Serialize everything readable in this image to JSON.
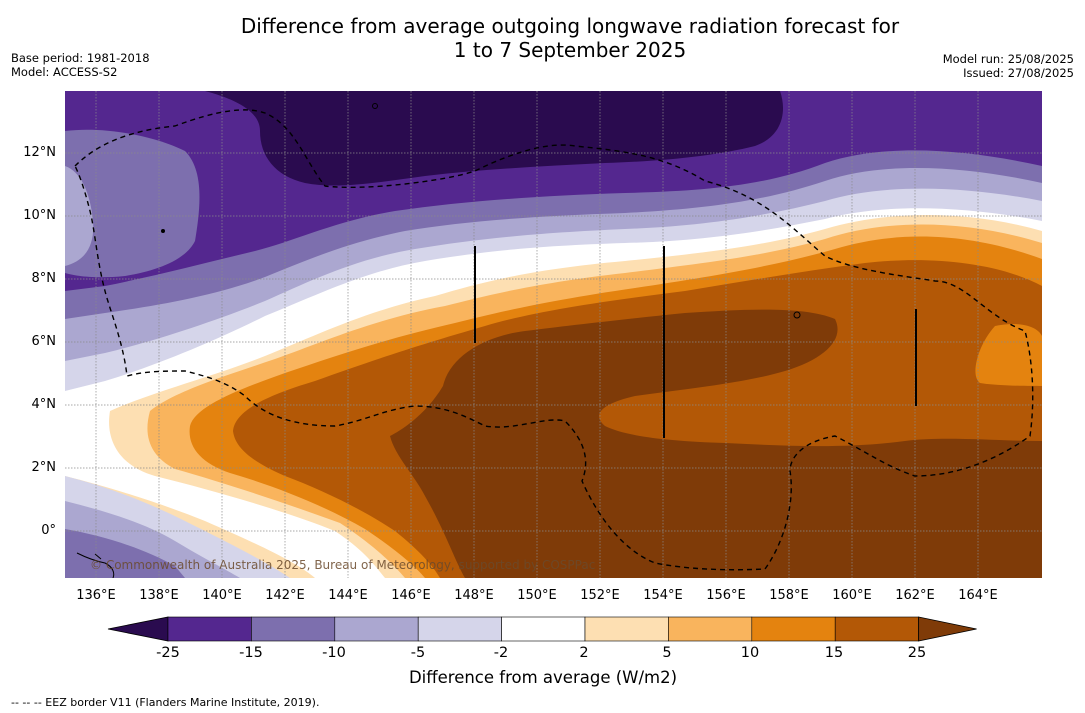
{
  "title_line1": "Difference from average outgoing longwave radiation forecast for",
  "title_line2": "1 to 7 September 2025",
  "meta_left": {
    "base_period": "Base period: 1981-2018",
    "model": "Model: ACCESS-S2"
  },
  "meta_right": {
    "model_run": "Model run: 25/08/2025",
    "issued": "Issued: 27/08/2025"
  },
  "lat_labels": [
    "12°N",
    "10°N",
    "8°N",
    "6°N",
    "4°N",
    "2°N",
    "0°"
  ],
  "lon_labels": [
    "136°E",
    "138°E",
    "140°E",
    "142°E",
    "144°E",
    "146°E",
    "148°E",
    "150°E",
    "152°E",
    "154°E",
    "156°E",
    "158°E",
    "160°E",
    "162°E",
    "164°E"
  ],
  "colorbar": {
    "ticks": [
      "-25",
      "-15",
      "-10",
      "-5",
      "-2",
      "2",
      "5",
      "10",
      "15",
      "25"
    ],
    "colors": [
      "#2a0b4f",
      "#54278f",
      "#7d6fae",
      "#aba7d0",
      "#d5d5ea",
      "#ffffff",
      "#fddfb2",
      "#f9b45d",
      "#e4830f",
      "#b35806",
      "#7f3b08"
    ],
    "label": "Difference from average (W/m2)"
  },
  "footnote": "--  --  -- EEZ border V11 (Flanders Marine Institute, 2019).",
  "copyright": "© Commonwealth of Australia 2025, Bureau of Meteorology, supported by COSPPac"
}
